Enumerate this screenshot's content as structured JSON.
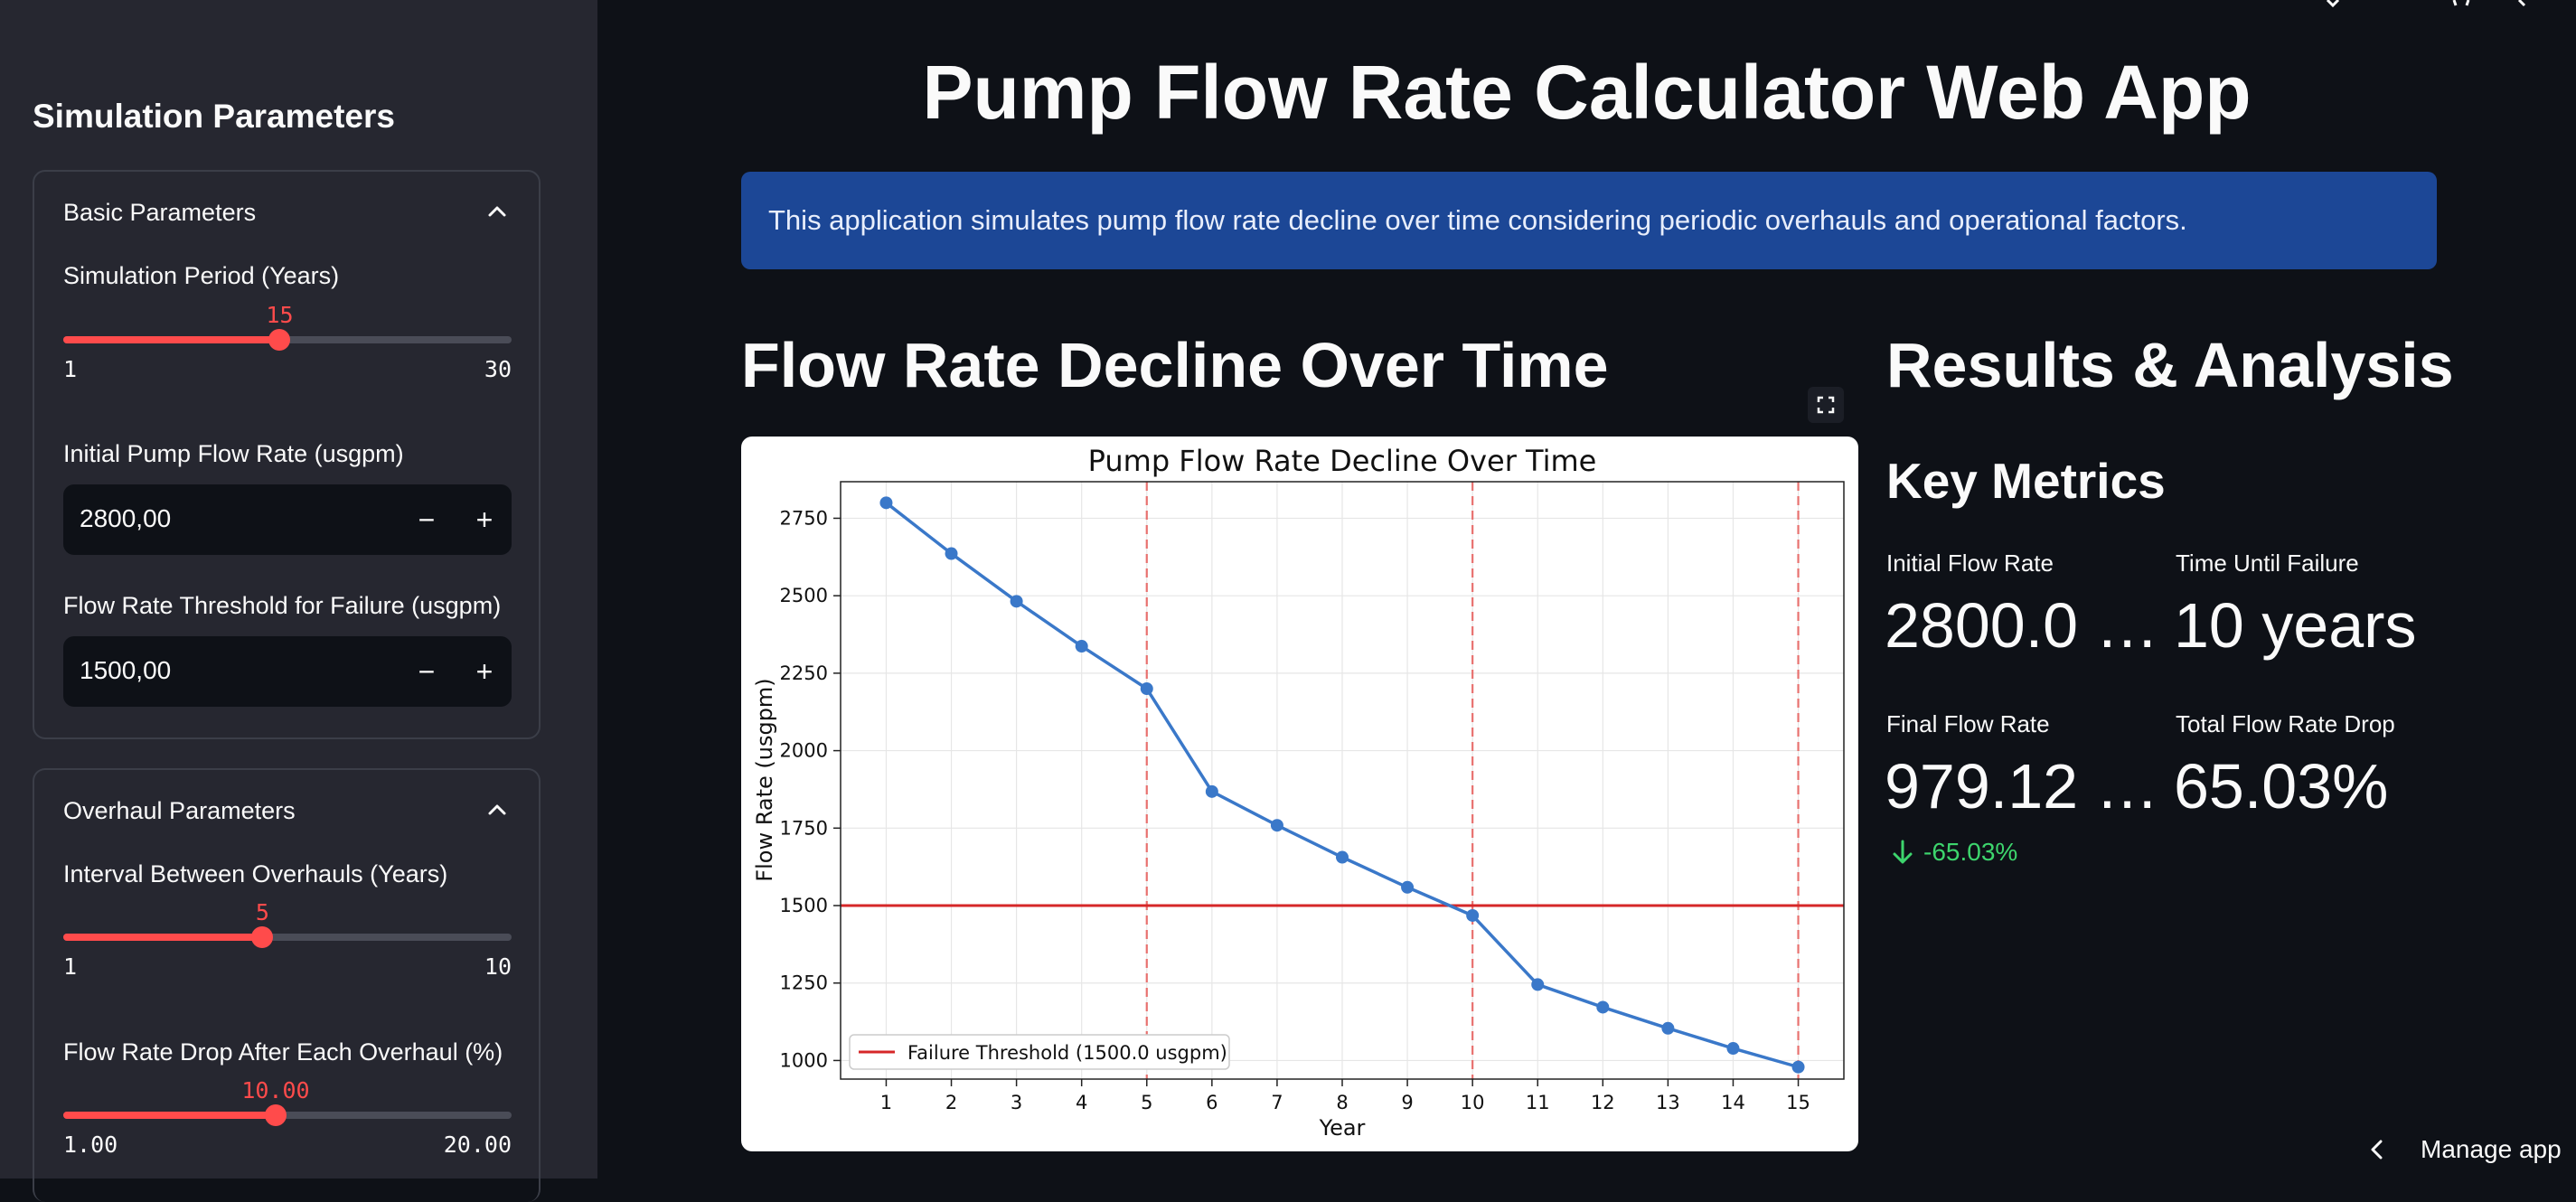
{
  "sidebar": {
    "title": "Simulation Parameters",
    "basic": {
      "header": "Basic Parameters",
      "period": {
        "label": "Simulation Period (Years)",
        "value": "15",
        "min": "1",
        "max": "30",
        "fraction": 0.4828
      },
      "initial_flow": {
        "label": "Initial Pump Flow Rate (usgpm)",
        "value": "2800,00"
      },
      "threshold": {
        "label": "Flow Rate Threshold for Failure (usgpm)",
        "value": "1500,00"
      }
    },
    "overhaul": {
      "header": "Overhaul Parameters",
      "interval": {
        "label": "Interval Between Overhauls (Years)",
        "value": "5",
        "min": "1",
        "max": "10",
        "fraction": 0.4444
      },
      "drop": {
        "label": "Flow Rate Drop After Each Overhaul (%)",
        "value": "10.00",
        "min": "1.00",
        "max": "20.00",
        "fraction": 0.4737
      }
    },
    "minus_glyph": "−",
    "plus_glyph": "+"
  },
  "main": {
    "title": "Pump Flow Rate Calculator Web App",
    "info": "This application simulates pump flow rate decline over time considering periodic overhauls and operational factors.",
    "chart_heading": "Flow Rate Decline Over Time",
    "results_heading": "Results & Analysis",
    "key_metrics": "Key Metrics",
    "metrics": {
      "initial_label": "Initial Flow Rate",
      "initial_value": "2800.0 …",
      "time_label": "Time Until Failure",
      "time_value": "10 years",
      "final_label": "Final Flow Rate",
      "final_value": "979.12 …",
      "drop_label": "Total Flow Rate Drop",
      "drop_value": "65.03%",
      "delta": "-65.03%"
    },
    "manage_app": "Manage app"
  },
  "colors": {
    "accent": "#ff4b4b",
    "info_bg": "#1c4796",
    "delta_green": "#3dd56d",
    "line": "#3a78c9",
    "threshold": "#d62728"
  },
  "chart_data": {
    "type": "line",
    "title": "Pump Flow Rate Decline Over Time",
    "xlabel": "Year",
    "ylabel": "Flow Rate (usgpm)",
    "x": [
      1,
      2,
      3,
      4,
      5,
      6,
      7,
      8,
      9,
      10,
      11,
      12,
      13,
      14,
      15
    ],
    "series": [
      {
        "values": [
          2800,
          2636,
          2482,
          2337,
          2200,
          1868,
          1759,
          1656,
          1559,
          1468,
          1245,
          1172,
          1104,
          1039,
          979
        ]
      }
    ],
    "threshold": {
      "value": 1500,
      "label": "Failure Threshold (1500.0 usgpm)"
    },
    "overhaul_years": [
      5,
      10,
      15
    ],
    "xlim": [
      0.3,
      15.7
    ],
    "ylim": [
      940,
      2868
    ],
    "yticks": [
      1000,
      1250,
      1500,
      1750,
      2000,
      2250,
      2500,
      2750
    ],
    "grid": true,
    "legend": "lower-left"
  }
}
